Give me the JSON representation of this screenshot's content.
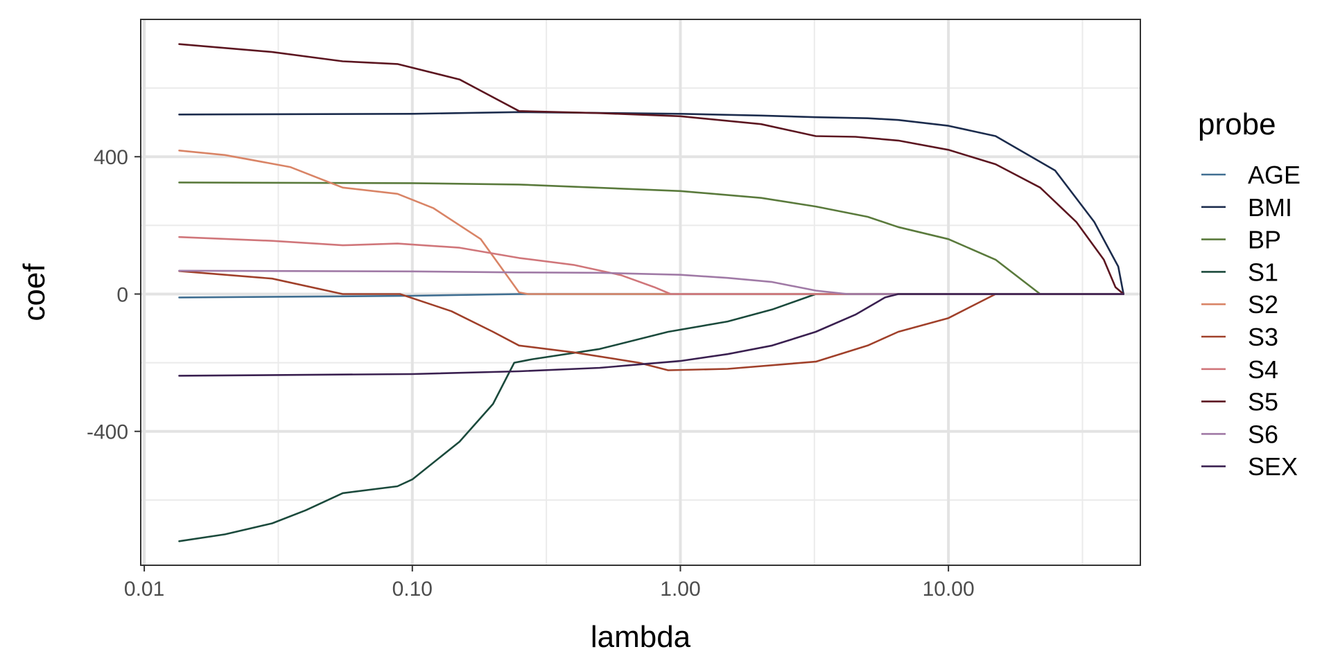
{
  "chart_data": {
    "type": "line",
    "title": "",
    "xlabel": "lambda",
    "ylabel": "coef",
    "x_scale": "log10",
    "xlim": [
      0.0097,
      52
    ],
    "ylim": [
      -790,
      800
    ],
    "x_ticks": [
      0.01,
      0.1,
      1,
      10
    ],
    "x_tick_labels": [
      "0.01",
      "0.10",
      "1.00",
      "10.00"
    ],
    "y_ticks": [
      -400,
      0,
      400
    ],
    "y_tick_labels": [
      "-400",
      "0",
      "400"
    ],
    "grid": true,
    "legend": {
      "title": "probe",
      "position": "right"
    },
    "series": [
      {
        "name": "AGE",
        "color": "#3f6e91",
        "points": [
          [
            0.0135,
            -10
          ],
          [
            0.05,
            -7
          ],
          [
            0.1,
            -5
          ],
          [
            0.25,
            0
          ],
          [
            45,
            0
          ]
        ]
      },
      {
        "name": "BMI",
        "color": "#1c2c4d",
        "points": [
          [
            0.0135,
            523
          ],
          [
            0.1,
            525
          ],
          [
            0.25,
            530
          ],
          [
            1,
            525
          ],
          [
            2,
            520
          ],
          [
            3.2,
            515
          ],
          [
            5,
            512
          ],
          [
            6.5,
            507
          ],
          [
            10,
            490
          ],
          [
            15,
            460
          ],
          [
            25,
            360
          ],
          [
            35,
            210
          ],
          [
            43,
            80
          ],
          [
            45,
            0
          ]
        ]
      },
      {
        "name": "BP",
        "color": "#5a7a3c",
        "points": [
          [
            0.0135,
            325
          ],
          [
            0.1,
            323
          ],
          [
            0.25,
            319
          ],
          [
            1,
            300
          ],
          [
            2,
            280
          ],
          [
            3.2,
            255
          ],
          [
            5,
            225
          ],
          [
            6.5,
            195
          ],
          [
            10,
            160
          ],
          [
            15,
            100
          ],
          [
            22,
            0
          ],
          [
            45,
            0
          ]
        ]
      },
      {
        "name": "S1",
        "color": "#1b4a3c",
        "points": [
          [
            0.0135,
            -720
          ],
          [
            0.02,
            -700
          ],
          [
            0.03,
            -668
          ],
          [
            0.04,
            -630
          ],
          [
            0.055,
            -580
          ],
          [
            0.088,
            -560
          ],
          [
            0.1,
            -540
          ],
          [
            0.15,
            -430
          ],
          [
            0.2,
            -320
          ],
          [
            0.24,
            -200
          ],
          [
            0.28,
            -190
          ],
          [
            0.5,
            -160
          ],
          [
            0.9,
            -110
          ],
          [
            1.5,
            -80
          ],
          [
            2.2,
            -45
          ],
          [
            3.2,
            0
          ],
          [
            45,
            0
          ]
        ]
      },
      {
        "name": "S2",
        "color": "#d98466",
        "points": [
          [
            0.0135,
            418
          ],
          [
            0.02,
            405
          ],
          [
            0.035,
            370
          ],
          [
            0.055,
            310
          ],
          [
            0.088,
            292
          ],
          [
            0.12,
            250
          ],
          [
            0.18,
            160
          ],
          [
            0.25,
            5
          ],
          [
            0.27,
            0
          ],
          [
            45,
            0
          ]
        ]
      },
      {
        "name": "S3",
        "color": "#a0402a",
        "points": [
          [
            0.0135,
            67
          ],
          [
            0.03,
            45
          ],
          [
            0.055,
            0
          ],
          [
            0.09,
            0
          ],
          [
            0.14,
            -50
          ],
          [
            0.2,
            -110
          ],
          [
            0.25,
            -150
          ],
          [
            0.4,
            -170
          ],
          [
            0.7,
            -200
          ],
          [
            0.9,
            -222
          ],
          [
            1.5,
            -218
          ],
          [
            3.2,
            -197
          ],
          [
            5,
            -150
          ],
          [
            6.5,
            -110
          ],
          [
            10,
            -70
          ],
          [
            15,
            0
          ],
          [
            45,
            0
          ]
        ]
      },
      {
        "name": "S4",
        "color": "#d0767a",
        "points": [
          [
            0.0135,
            166
          ],
          [
            0.03,
            155
          ],
          [
            0.055,
            142
          ],
          [
            0.088,
            147
          ],
          [
            0.15,
            135
          ],
          [
            0.25,
            105
          ],
          [
            0.4,
            85
          ],
          [
            0.6,
            55
          ],
          [
            0.8,
            20
          ],
          [
            0.92,
            0
          ],
          [
            45,
            0
          ]
        ]
      },
      {
        "name": "S5",
        "color": "#5c1620",
        "points": [
          [
            0.0135,
            728
          ],
          [
            0.03,
            705
          ],
          [
            0.055,
            678
          ],
          [
            0.088,
            670
          ],
          [
            0.15,
            625
          ],
          [
            0.25,
            533
          ],
          [
            0.5,
            527
          ],
          [
            1,
            518
          ],
          [
            2,
            495
          ],
          [
            3.2,
            460
          ],
          [
            4.5,
            458
          ],
          [
            6.5,
            447
          ],
          [
            10,
            420
          ],
          [
            15,
            378
          ],
          [
            22,
            310
          ],
          [
            30,
            210
          ],
          [
            38,
            100
          ],
          [
            42,
            20
          ],
          [
            45,
            0
          ]
        ]
      },
      {
        "name": "S6",
        "color": "#a07aa6",
        "points": [
          [
            0.0135,
            68
          ],
          [
            0.1,
            66
          ],
          [
            0.25,
            63
          ],
          [
            0.5,
            62
          ],
          [
            1,
            56
          ],
          [
            1.5,
            47
          ],
          [
            2.2,
            35
          ],
          [
            3.2,
            10
          ],
          [
            4.2,
            0
          ],
          [
            45,
            0
          ]
        ]
      },
      {
        "name": "SEX",
        "color": "#3a2050",
        "points": [
          [
            0.0135,
            -238
          ],
          [
            0.1,
            -233
          ],
          [
            0.25,
            -225
          ],
          [
            0.5,
            -215
          ],
          [
            1,
            -195
          ],
          [
            1.5,
            -175
          ],
          [
            2.2,
            -150
          ],
          [
            3.2,
            -110
          ],
          [
            4.5,
            -60
          ],
          [
            5.8,
            -10
          ],
          [
            6.5,
            0
          ],
          [
            45,
            0
          ]
        ]
      }
    ]
  }
}
